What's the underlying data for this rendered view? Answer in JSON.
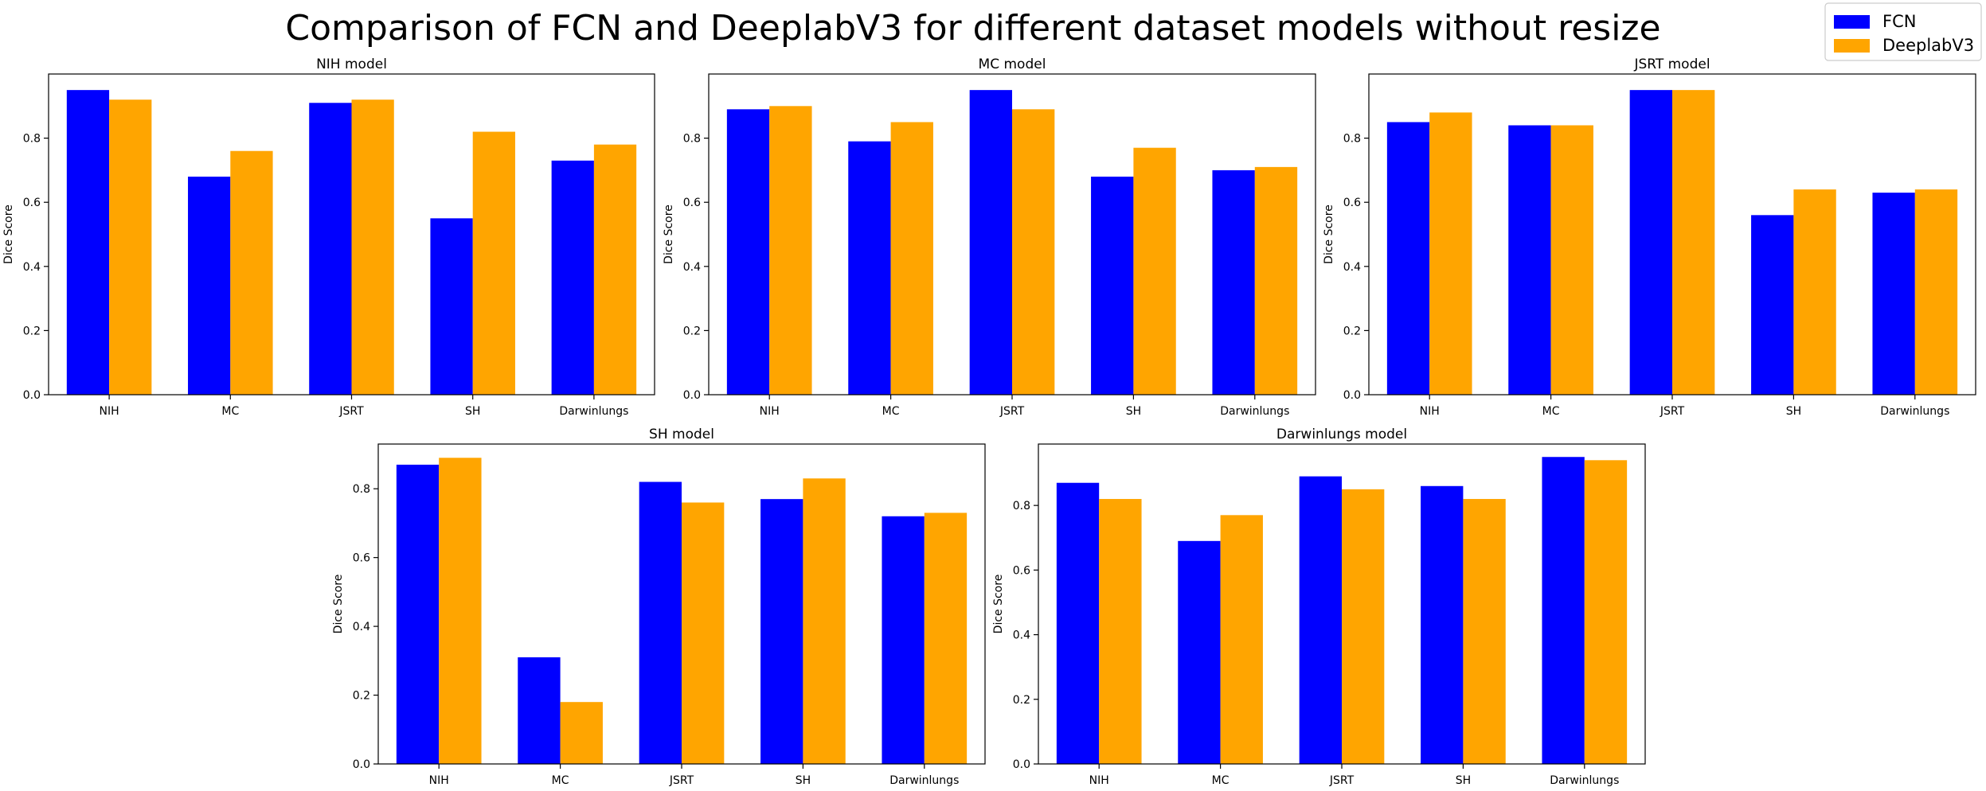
{
  "figure": {
    "suptitle": "Comparison of FCN and DeeplabV3 for different dataset models without resize",
    "legend": {
      "placement": "top-right",
      "entries": [
        {
          "name": "FCN",
          "color": "#0000ff"
        },
        {
          "name": "DeeplabV3",
          "color": "#ffa500"
        }
      ]
    }
  },
  "chart_data": [
    {
      "type": "bar",
      "title": "NIH model",
      "xlabel": "",
      "ylabel": "Dice Score",
      "categories": [
        "NIH",
        "MC",
        "JSRT",
        "SH",
        "Darwinlungs"
      ],
      "series": [
        {
          "name": "FCN",
          "color": "#0000ff",
          "values": [
            0.95,
            0.68,
            0.91,
            0.55,
            0.73
          ]
        },
        {
          "name": "DeeplabV3",
          "color": "#ffa500",
          "values": [
            0.92,
            0.76,
            0.92,
            0.82,
            0.78
          ]
        }
      ],
      "ylim": [
        0,
        1.0
      ],
      "yticks": [
        0.0,
        0.2,
        0.4,
        0.6,
        0.8
      ],
      "grid": false
    },
    {
      "type": "bar",
      "title": "MC model",
      "xlabel": "",
      "ylabel": "Dice Score",
      "categories": [
        "NIH",
        "MC",
        "JSRT",
        "SH",
        "Darwinlungs"
      ],
      "series": [
        {
          "name": "FCN",
          "color": "#0000ff",
          "values": [
            0.89,
            0.79,
            0.95,
            0.68,
            0.7
          ]
        },
        {
          "name": "DeeplabV3",
          "color": "#ffa500",
          "values": [
            0.9,
            0.85,
            0.89,
            0.77,
            0.71
          ]
        }
      ],
      "ylim": [
        0,
        1.0
      ],
      "yticks": [
        0.0,
        0.2,
        0.4,
        0.6,
        0.8
      ],
      "grid": false
    },
    {
      "type": "bar",
      "title": "JSRT model",
      "xlabel": "",
      "ylabel": "Dice Score",
      "categories": [
        "NIH",
        "MC",
        "JSRT",
        "SH",
        "Darwinlungs"
      ],
      "series": [
        {
          "name": "FCN",
          "color": "#0000ff",
          "values": [
            0.85,
            0.84,
            0.95,
            0.56,
            0.63
          ]
        },
        {
          "name": "DeeplabV3",
          "color": "#ffa500",
          "values": [
            0.88,
            0.84,
            0.95,
            0.64,
            0.64
          ]
        }
      ],
      "ylim": [
        0,
        1.0
      ],
      "yticks": [
        0.0,
        0.2,
        0.4,
        0.6,
        0.8
      ],
      "grid": false
    },
    {
      "type": "bar",
      "title": "SH model",
      "xlabel": "",
      "ylabel": "Dice Score",
      "categories": [
        "NIH",
        "MC",
        "JSRT",
        "SH",
        "Darwinlungs"
      ],
      "series": [
        {
          "name": "FCN",
          "color": "#0000ff",
          "values": [
            0.87,
            0.31,
            0.82,
            0.77,
            0.72
          ]
        },
        {
          "name": "DeeplabV3",
          "color": "#ffa500",
          "values": [
            0.89,
            0.18,
            0.76,
            0.83,
            0.73
          ]
        }
      ],
      "ylim": [
        0,
        0.93
      ],
      "yticks": [
        0.0,
        0.2,
        0.4,
        0.6,
        0.8
      ],
      "grid": false
    },
    {
      "type": "bar",
      "title": "Darwinlungs model",
      "xlabel": "",
      "ylabel": "Dice Score",
      "categories": [
        "NIH",
        "MC",
        "JSRT",
        "SH",
        "Darwinlungs"
      ],
      "series": [
        {
          "name": "FCN",
          "color": "#0000ff",
          "values": [
            0.87,
            0.69,
            0.89,
            0.86,
            0.95
          ]
        },
        {
          "name": "DeeplabV3",
          "color": "#ffa500",
          "values": [
            0.82,
            0.77,
            0.85,
            0.82,
            0.94
          ]
        }
      ],
      "ylim": [
        0,
        0.99
      ],
      "yticks": [
        0.0,
        0.2,
        0.4,
        0.6,
        0.8
      ],
      "grid": false
    }
  ]
}
